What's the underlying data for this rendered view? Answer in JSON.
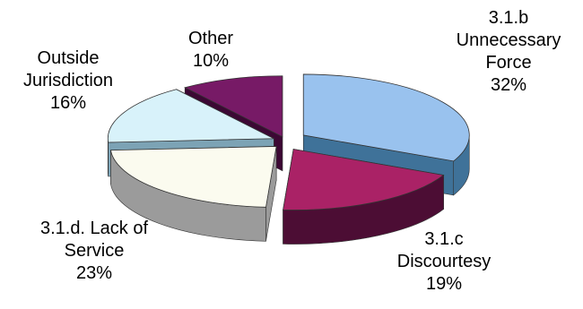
{
  "chart_data": {
    "type": "pie",
    "title": "",
    "categories": [
      "3.1.b Unnecessary Force",
      "3.1.c Discourtesy",
      "3.1.d. Lack of Service",
      "Outside Jurisdiction",
      "Other"
    ],
    "values": [
      32,
      19,
      23,
      16,
      10
    ],
    "units": "%",
    "legend": "none",
    "three_d": true,
    "exploded": true,
    "colors": [
      "#99c2ee",
      "#aa2266",
      "#fbfbef",
      "#d8f2fa",
      "#771a66"
    ],
    "side_colors": [
      "#3f7299",
      "#4c0d34",
      "#9b9b9b",
      "#7ca3b5",
      "#3c0834"
    ],
    "labels": [
      {
        "line1": "3.1.b",
        "line2": "Unnecessary",
        "line3": "Force",
        "value_text": "32%"
      },
      {
        "line1": "3.1.c",
        "line2": "Discourtesy",
        "value_text": "19%"
      },
      {
        "line1": "3.1.d. Lack of",
        "line2": "Service",
        "value_text": "23%"
      },
      {
        "line1": "Outside",
        "line2": "Jurisdiction",
        "value_text": "16%"
      },
      {
        "line1": "Other",
        "value_text": "10%"
      }
    ]
  }
}
